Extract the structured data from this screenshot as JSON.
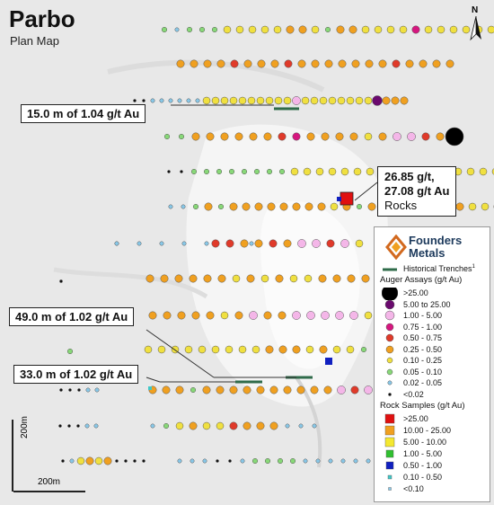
{
  "title": "Parbo",
  "subtitle": "Plan Map",
  "north_label": "N",
  "scale": {
    "vertical": "200m",
    "horizontal": "200m"
  },
  "callouts": {
    "c1": "15.0 m of 1.04 g/t Au",
    "c2_line1": "26.85 g/t,",
    "c2_line2": "27.08 g/t Au",
    "c2_line3": "Rocks",
    "c3": "49.0 m of 1.02 g/t Au",
    "c4": "33.0 m of 1.02 g/t Au"
  },
  "legend": {
    "brand_line1": "Founders",
    "brand_line2": "Metals",
    "trenches": "Historical Trenches",
    "trenches_sup": "1",
    "auger_title": "Auger Assays (g/t Au)",
    "auger": [
      {
        "label": ">25.00",
        "color": "#000000"
      },
      {
        "label": "5.00 to 25.00",
        "color": "#6a0a6e"
      },
      {
        "label": "1.00 - 5.00",
        "color": "#f4b6e8"
      },
      {
        "label": "0.75 - 1.00",
        "color": "#d6177f"
      },
      {
        "label": "0.50 - 0.75",
        "color": "#e03a2a"
      },
      {
        "label": "0.25 - 0.50",
        "color": "#f0a020"
      },
      {
        "label": "0.10 - 0.25",
        "color": "#f0e040"
      },
      {
        "label": "0.05 - 0.10",
        "color": "#88d878"
      },
      {
        "label": "0.02 - 0.05",
        "color": "#88c8e8"
      },
      {
        "label": "<0.02",
        "color": "#111111"
      }
    ],
    "rock_title": "Rock Samples (g/t Au)",
    "rock": [
      {
        "label": ">25.00",
        "color": "#e01010"
      },
      {
        "label": "10.00 - 25.00",
        "color": "#f0a020"
      },
      {
        "label": "5.00 - 10.00",
        "color": "#f4e830"
      },
      {
        "label": "1.00 - 5.00",
        "color": "#30c030"
      },
      {
        "label": "0.50 - 1.00",
        "color": "#1020c0"
      },
      {
        "label": "0.10 - 0.50",
        "color": "#40c8c8"
      },
      {
        "label": "<0.10",
        "color": "#88c8e8"
      }
    ]
  }
}
